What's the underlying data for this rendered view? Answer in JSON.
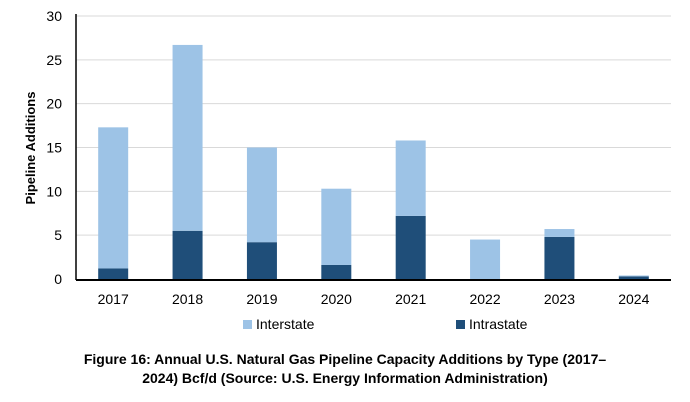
{
  "chart_data": {
    "type": "bar",
    "stacked": true,
    "categories": [
      "2017",
      "2018",
      "2019",
      "2020",
      "2021",
      "2022",
      "2023",
      "2024"
    ],
    "series": [
      {
        "name": "Intrastate",
        "color": "#1f4e79",
        "values": [
          1.2,
          5.5,
          4.2,
          1.6,
          7.2,
          0,
          4.8,
          0.3
        ]
      },
      {
        "name": "Interstate",
        "color": "#9dc3e6",
        "values": [
          16.1,
          21.2,
          10.8,
          8.7,
          8.6,
          4.5,
          0.9,
          0.1
        ]
      }
    ],
    "ylabel": "Pipeline Additions",
    "xlabel": "",
    "ylim": [
      0,
      30
    ],
    "yticks": [
      "0",
      "5",
      "10",
      "15",
      "20",
      "25",
      "30"
    ],
    "grid": true,
    "legend_position": "bottom",
    "legend": [
      "Interstate",
      "Intrastate"
    ]
  },
  "caption": {
    "line1": "Figure 16: Annual U.S. Natural Gas Pipeline Capacity Additions by Type (2017–",
    "line2": "2024) Bcf/d (Source: U.S. Energy Information Administration)"
  }
}
